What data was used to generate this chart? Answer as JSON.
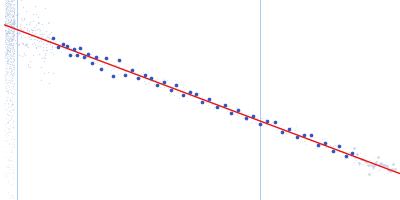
{
  "bg_color": "#ffffff",
  "fit_slope": -1.45,
  "fit_intercept": 4.25,
  "vline1_x": 0.013,
  "vline2_x": 0.265,
  "vline_color": "#aaccee",
  "raw_color": "#aabbdd",
  "dot_color": "#3355bb",
  "fit_color": "#ee1111",
  "dot_x": [
    0.05,
    0.055,
    0.06,
    0.065,
    0.068,
    0.072,
    0.075,
    0.078,
    0.082,
    0.086,
    0.09,
    0.095,
    0.1,
    0.105,
    0.112,
    0.118,
    0.125,
    0.132,
    0.138,
    0.145,
    0.152,
    0.158,
    0.165,
    0.172,
    0.178,
    0.185,
    0.192,
    0.198,
    0.205,
    0.212,
    0.22,
    0.228,
    0.235,
    0.242,
    0.25,
    0.257,
    0.265,
    0.272,
    0.28,
    0.288,
    0.295,
    0.303,
    0.31,
    0.318,
    0.325,
    0.332,
    0.34,
    0.347,
    0.354,
    0.36
  ],
  "dot_noise": [
    0.02,
    -0.01,
    0.01,
    0.01,
    -0.02,
    0.01,
    -0.01,
    0.02,
    -0.01,
    0.01,
    -0.02,
    0.01,
    -0.03,
    0.02,
    -0.04,
    0.03,
    -0.02,
    0.01,
    -0.01,
    0.01,
    0.01,
    -0.01,
    0.01,
    -0.01,
    0.02,
    -0.01,
    0.01,
    0.01,
    -0.01,
    0.01,
    -0.01,
    0.01,
    -0.01,
    0.01,
    -0.01,
    0.01,
    -0.01,
    0.01,
    0.02,
    -0.01,
    0.01,
    -0.01,
    0.01,
    0.02,
    -0.01,
    0.01,
    -0.01,
    0.02,
    -0.01,
    0.01
  ],
  "ylim_low": 3.55,
  "ylim_high": 4.35,
  "xlim_low": -0.005,
  "xlim_high": 0.41,
  "fit_x_start": 0.0,
  "fit_x_end": 0.41
}
